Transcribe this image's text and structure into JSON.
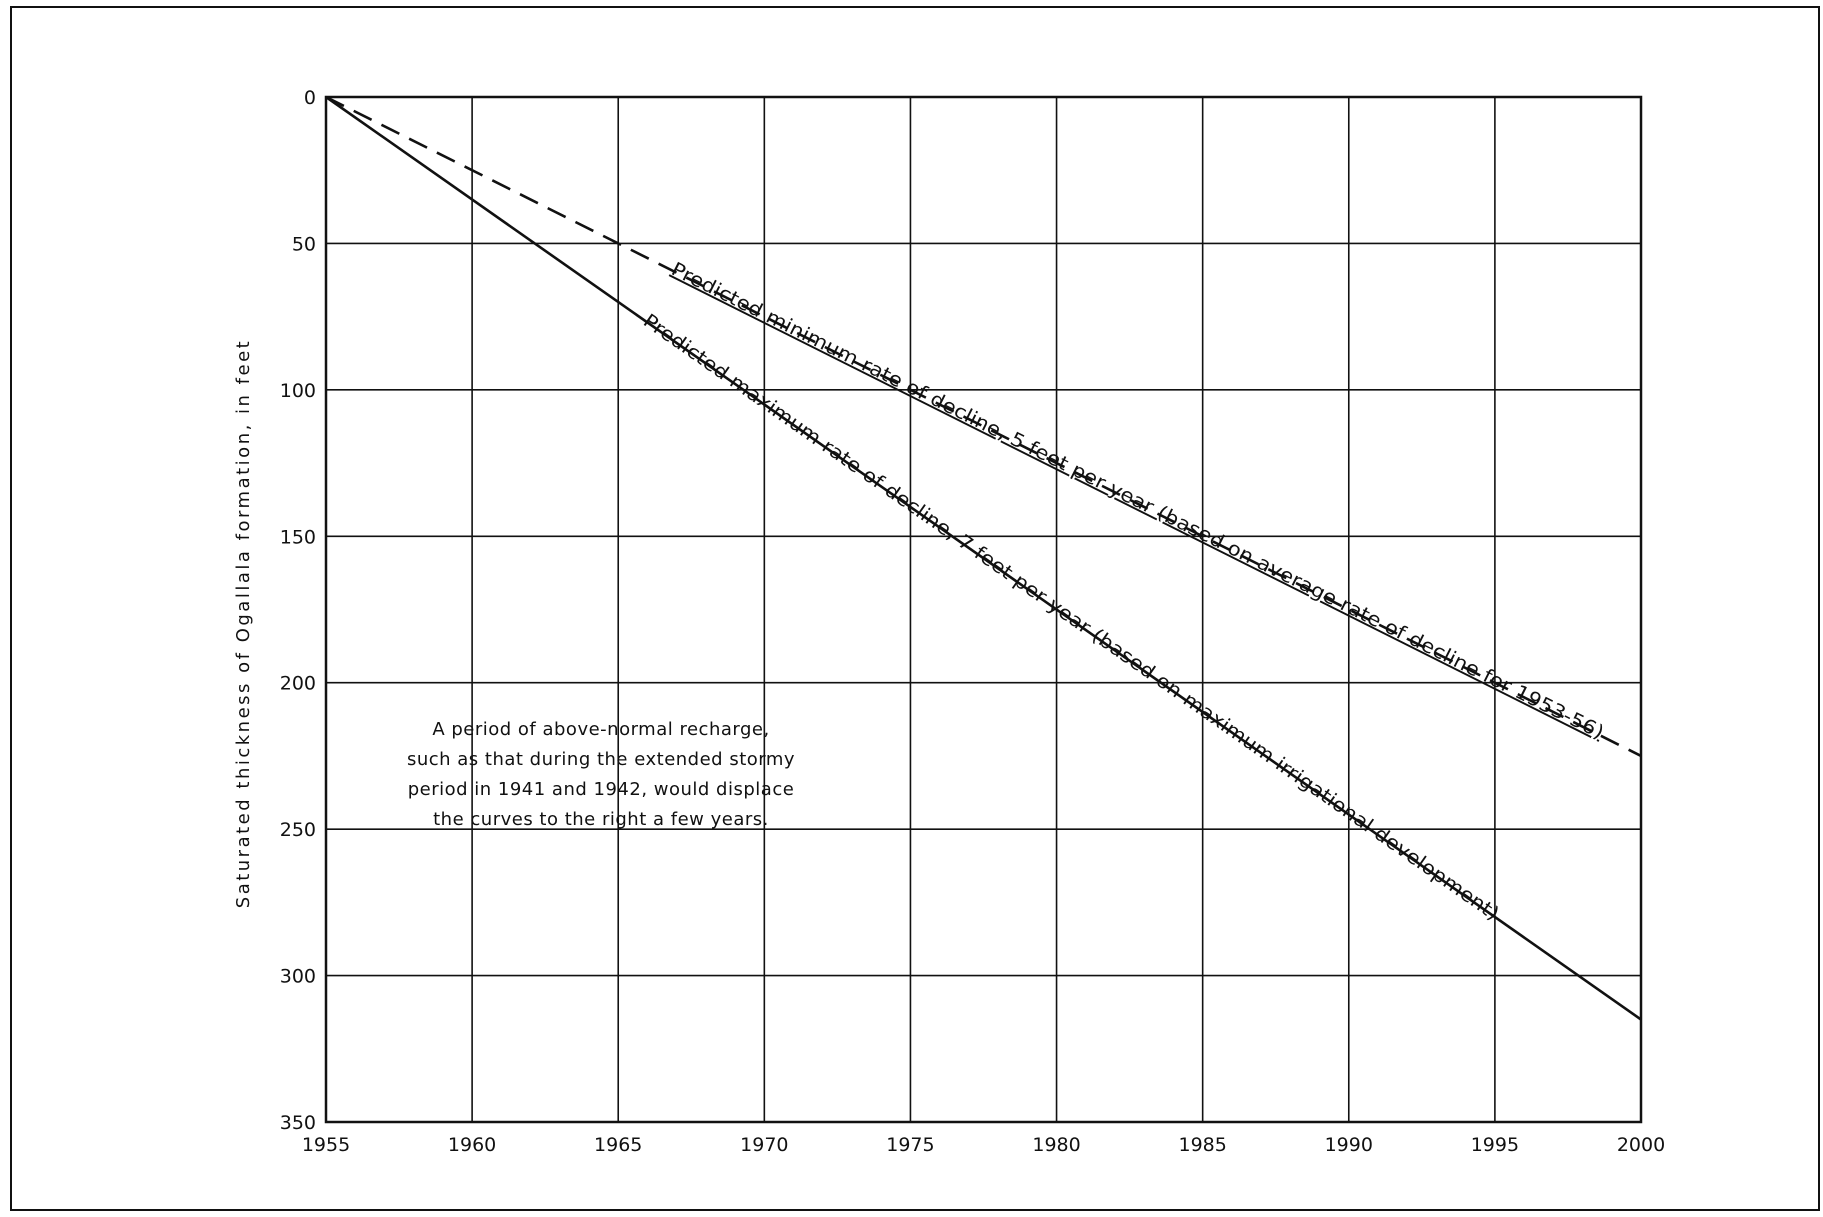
{
  "chart_data": {
    "type": "line",
    "title": "",
    "xlabel": "",
    "ylabel": "Saturated thickness of Ogallala formation, in feet",
    "xlim": [
      1955,
      2000
    ],
    "ylim": [
      0,
      350
    ],
    "y_inverted": true,
    "grid": true,
    "x_ticks": [
      1955,
      1960,
      1965,
      1970,
      1975,
      1980,
      1985,
      1990,
      1995,
      2000
    ],
    "y_ticks": [
      0,
      50,
      100,
      150,
      200,
      250,
      300,
      350
    ],
    "series": [
      {
        "name": "Predicted minimum rate of decline, 5 feet per year (based on average rate of decline for 1953-56)",
        "style": "dashed",
        "x": [
          1955,
          2000
        ],
        "y": [
          0,
          225
        ]
      },
      {
        "name": "Predicted maximum rate of decline, 7 feet per year (based on maximum irrigational development)",
        "style": "solid",
        "x": [
          1955,
          2000
        ],
        "y": [
          0,
          315
        ]
      }
    ],
    "annotation": [
      "A period of above-normal recharge,",
      "such as that during the extended stormy",
      "period in 1941 and 1942, would displace",
      "the curves to the right a few years."
    ]
  }
}
